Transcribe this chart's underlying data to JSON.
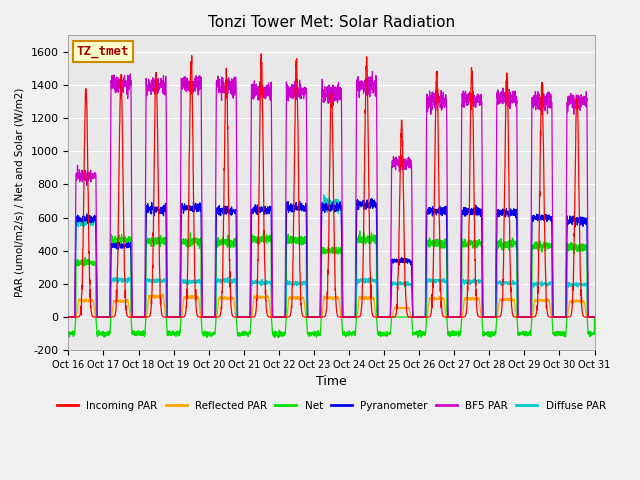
{
  "title": "Tonzi Tower Met: Solar Radiation",
  "ylabel": "PAR (umol/m2/s) / Net and Solar (W/m2)",
  "xlabel": "Time",
  "ylim": [
    -200,
    1700
  ],
  "yticks": [
    -200,
    0,
    200,
    400,
    600,
    800,
    1000,
    1200,
    1400,
    1600
  ],
  "xtick_labels": [
    "Oct 16",
    "Oct 17",
    "Oct 18",
    "Oct 19",
    "Oct 20",
    "Oct 21",
    "Oct 22",
    "Oct 23",
    "Oct 24",
    "Oct 25",
    "Oct 26",
    "Oct 27",
    "Oct 28",
    "Oct 29",
    "Oct 30",
    "Oct 31"
  ],
  "fig_bg_color": "#f0f0f0",
  "plot_bg_color": "#e8e8e8",
  "grid_color": "#ffffff",
  "legend_entries": [
    "Incoming PAR",
    "Reflected PAR",
    "Net",
    "Pyranometer",
    "BF5 PAR",
    "Diffuse PAR"
  ],
  "legend_colors": [
    "#ff0000",
    "#ffa500",
    "#00dd00",
    "#0000ee",
    "#cc00cc",
    "#00cccc"
  ],
  "line_colors": {
    "incoming_par": "#ff0000",
    "reflected_par": "#ffa500",
    "net": "#00dd00",
    "pyranometer": "#0000ee",
    "bf5_par": "#cc00cc",
    "diffuse_par": "#00cccc"
  },
  "n_days": 15,
  "label_box_color": "#ffffcc",
  "label_box_edge": "#cc8800",
  "label_text": "TZ_tmet",
  "incoming_par_peaks": [
    1390,
    1450,
    1460,
    1550,
    1470,
    1540,
    1535,
    1350,
    1560,
    1160,
    1475,
    1495,
    1465,
    1410,
    1330
  ],
  "bf5_par_peaks": [
    850,
    1400,
    1395,
    1400,
    1390,
    1365,
    1360,
    1355,
    1400,
    930,
    1300,
    1310,
    1320,
    1305,
    1300
  ],
  "pyranometer_peaks": [
    590,
    430,
    650,
    660,
    640,
    650,
    660,
    660,
    680,
    340,
    640,
    640,
    630,
    600,
    580
  ],
  "net_peaks": [
    330,
    465,
    460,
    455,
    450,
    470,
    465,
    400,
    470,
    0,
    445,
    445,
    440,
    430,
    420
  ],
  "reflected_par_peaks": [
    100,
    95,
    125,
    120,
    115,
    120,
    115,
    115,
    115,
    55,
    110,
    110,
    105,
    100,
    95
  ],
  "diffuse_par_peaks": [
    580,
    225,
    220,
    215,
    220,
    210,
    205,
    680,
    220,
    200,
    220,
    215,
    205,
    200,
    195
  ],
  "day_start": 0.18,
  "day_end": 0.82,
  "net_night": -100,
  "pts_per_day": 200
}
